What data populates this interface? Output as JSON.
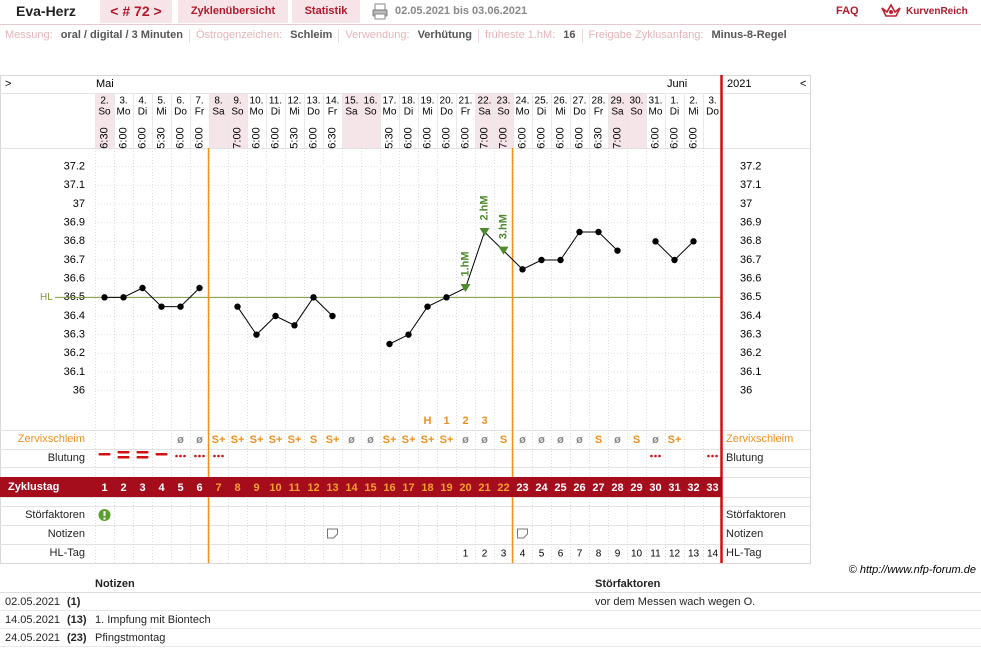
{
  "header": {
    "title": "Eva-Herz",
    "cycle": "< # 72 >",
    "tabs": [
      "Zyklenübersicht",
      "Statistik"
    ],
    "date_range": "02.05.2021 bis 03.06.2021",
    "faq": "FAQ",
    "brand": "KurvenReich"
  },
  "info": [
    {
      "label": "Messung:",
      "value": "oral / digital / 3 Minuten"
    },
    {
      "label": "Östrogenzeichen:",
      "value": "Schleim"
    },
    {
      "label": "Verwendung:",
      "value": "Verhütung"
    },
    {
      "label": "früheste 1.hM:",
      "value": "16"
    },
    {
      "label": "Freigabe Zyklusanfang:",
      "value": "Minus-8-Regel"
    }
  ],
  "nav": {
    "left": ">",
    "right": "<"
  },
  "months": [
    "Mai",
    "Juni"
  ],
  "year": "2021",
  "chart_data": {
    "type": "line",
    "days": [
      "2.",
      "3.",
      "4.",
      "5.",
      "6.",
      "7.",
      "8.",
      "9.",
      "10.",
      "11.",
      "12.",
      "13.",
      "14.",
      "15.",
      "16.",
      "17.",
      "18.",
      "19.",
      "20.",
      "21.",
      "22.",
      "23.",
      "24.",
      "25.",
      "26.",
      "27.",
      "28.",
      "29.",
      "30.",
      "31.",
      "1.",
      "2.",
      "3."
    ],
    "weekdays": [
      "So",
      "Mo",
      "Di",
      "Mi",
      "Do",
      "Fr",
      "Sa",
      "So",
      "Mo",
      "Di",
      "Mi",
      "Do",
      "Fr",
      "Sa",
      "So",
      "Mo",
      "Di",
      "Mi",
      "Do",
      "Fr",
      "Sa",
      "So",
      "Mo",
      "Di",
      "Mi",
      "Do",
      "Fr",
      "Sa",
      "So",
      "Mo",
      "Di",
      "Mi",
      "Do"
    ],
    "times": [
      "6:30",
      "6:00",
      "6:00",
      "5:30",
      "6:00",
      "6:00",
      null,
      "7:00",
      "6:00",
      "6:00",
      "5:30",
      "6:00",
      "6:30",
      null,
      null,
      "5:30",
      "6:00",
      "6:00",
      "6:00",
      "6:00",
      "7:00",
      "7:00",
      "6:00",
      "6:00",
      "6:00",
      "6:00",
      "6:30",
      "7:00",
      null,
      "6:00",
      "6:00",
      "6:00",
      null
    ],
    "values": [
      36.5,
      36.5,
      36.55,
      36.45,
      36.45,
      36.55,
      null,
      36.45,
      36.3,
      36.4,
      36.35,
      36.5,
      36.4,
      null,
      null,
      36.25,
      36.3,
      36.45,
      36.5,
      36.55,
      36.85,
      36.75,
      36.65,
      36.7,
      36.7,
      36.85,
      36.85,
      36.75,
      null,
      36.8,
      36.7,
      36.8,
      null
    ],
    "hm_labels": [
      null,
      null,
      null,
      null,
      null,
      null,
      null,
      null,
      null,
      null,
      null,
      null,
      null,
      null,
      null,
      null,
      null,
      null,
      null,
      "1.hM",
      "2.hM",
      "3.hM",
      null,
      null,
      null,
      null,
      null,
      null,
      null,
      null,
      null,
      null,
      null
    ],
    "color": "#000000",
    "hm_color": "#4f8a2b",
    "ylim": [
      35.8,
      37.3
    ],
    "yticks": [
      36,
      36.1,
      36.2,
      36.3,
      36.4,
      36.5,
      36.6,
      36.7,
      36.8,
      36.9,
      37,
      37.1,
      37.2
    ],
    "hl": 36.5,
    "hl_label": "HL",
    "hl_color": "#7a9a3a",
    "grid": true
  },
  "peak_row": [
    null,
    null,
    null,
    null,
    null,
    null,
    null,
    null,
    null,
    null,
    null,
    null,
    null,
    null,
    null,
    null,
    null,
    "H",
    "1",
    "2",
    "3",
    null,
    null,
    null,
    null,
    null,
    null,
    null,
    null,
    null,
    null,
    null,
    null
  ],
  "mucus": [
    null,
    null,
    null,
    null,
    "ø",
    "ø",
    "S+",
    "S+",
    "S+",
    "S+",
    "S+",
    "S",
    "S+",
    "ø",
    "ø",
    "S+",
    "S+",
    "S+",
    "S+",
    "ø",
    "ø",
    "S",
    "ø",
    "ø",
    "ø",
    "ø",
    "S",
    "ø",
    "S",
    "ø",
    "S+",
    null,
    null
  ],
  "cycle_days": [
    1,
    2,
    3,
    4,
    5,
    6,
    7,
    8,
    9,
    10,
    11,
    12,
    13,
    14,
    15,
    16,
    17,
    18,
    19,
    20,
    21,
    22,
    23,
    24,
    25,
    26,
    27,
    28,
    29,
    30,
    31,
    32,
    33
  ],
  "hl_days": [
    null,
    null,
    null,
    null,
    null,
    null,
    null,
    null,
    null,
    null,
    null,
    null,
    null,
    null,
    null,
    null,
    null,
    null,
    null,
    1,
    2,
    3,
    4,
    5,
    6,
    7,
    8,
    9,
    10,
    11,
    12,
    13,
    14
  ],
  "row_labels": {
    "mucus": "Zervixschleim",
    "bleeding": "Blutung",
    "cycle_day": "Zyklustag",
    "disturb": "Störfaktoren",
    "notes": "Notizen",
    "hl_day": "HL-Tag"
  },
  "copyright": "© http://www.nfp-forum.de",
  "notes_table": {
    "headers": [
      "Notizen",
      "Störfaktoren"
    ],
    "rows": [
      {
        "date": "02.05.2021",
        "day": "(1)",
        "disturb": "vor dem Messen wach wegen O."
      },
      {
        "date": "14.05.2021",
        "day": "(13)",
        "note": "1. Impfung mit Biontech"
      },
      {
        "date": "24.05.2021",
        "day": "(23)",
        "note": "Pfingstmontag"
      }
    ]
  }
}
